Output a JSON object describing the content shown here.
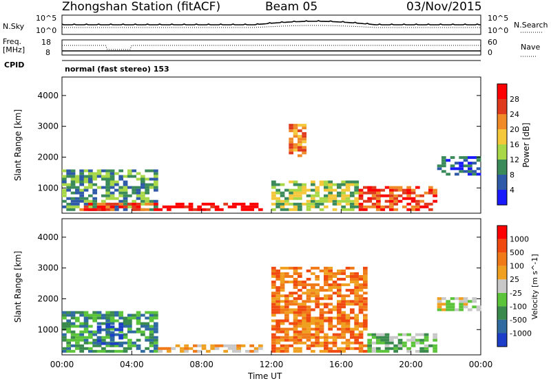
{
  "header": {
    "station": "Zhongshan Station (fitACF)",
    "beam": "Beam 05",
    "date": "03/Nov/2015"
  },
  "noise_panel": {
    "left_label": "N.Sky",
    "right_label": "N.Search",
    "left_ticks": [
      "10^5",
      "10^0"
    ],
    "right_ticks": [
      "10^5",
      "10^0"
    ]
  },
  "freq_panel": {
    "left_label": "Freq.",
    "left_unit": "[MHz]",
    "right_label": "Nave",
    "left_ticks": [
      "18",
      "8"
    ],
    "right_ticks": [
      "60",
      "0"
    ]
  },
  "cpid": {
    "label": "CPID",
    "value": "normal (fast stereo) 153"
  },
  "x_axis": {
    "title": "Time UT",
    "ticks": [
      "00:00",
      "04:00",
      "08:00",
      "12:00",
      "16:00",
      "20:00",
      "00:00"
    ]
  },
  "chart_data": [
    {
      "type": "heatmap",
      "title": "Power",
      "ylabel": "Slant Range [km]",
      "yticks": [
        1000,
        2000,
        3000,
        4000
      ],
      "ylim": [
        180,
        4600
      ],
      "xlabel": "Time UT",
      "colorbar": {
        "label": "Power [dB]",
        "ticks": [
          "4",
          "8",
          "12",
          "16",
          "20",
          "24",
          "28"
        ],
        "colors": [
          "#1a1aff",
          "#2e5aa8",
          "#3b8a5a",
          "#a8d848",
          "#f5c83c",
          "#f08a28",
          "#e03a1e",
          "#ff0000"
        ]
      },
      "regions": [
        {
          "t0": 0.0,
          "t1": 5.5,
          "r0": 250,
          "r1": 1600,
          "c": 2
        },
        {
          "t0": 1.0,
          "t1": 5.5,
          "r0": 250,
          "r1": 450,
          "c": 6
        },
        {
          "t0": 5.5,
          "t1": 11.5,
          "r0": 250,
          "r1": 500,
          "c": 7
        },
        {
          "t0": 12.0,
          "t1": 17.0,
          "r0": 250,
          "r1": 1200,
          "c": 3
        },
        {
          "t0": 13.0,
          "t1": 14.0,
          "r0": 2000,
          "r1": 3000,
          "c": 5
        },
        {
          "t0": 17.0,
          "t1": 21.5,
          "r0": 250,
          "r1": 1000,
          "c": 6
        },
        {
          "t0": 21.5,
          "t1": 24.0,
          "r0": 1400,
          "r1": 2000,
          "c": 1
        }
      ]
    },
    {
      "type": "heatmap",
      "title": "Velocity",
      "ylabel": "Slant Range [km]",
      "yticks": [
        1000,
        2000,
        3000,
        4000
      ],
      "ylim": [
        180,
        4600
      ],
      "xlabel": "Time UT",
      "colorbar": {
        "label": "Velocity [m s^-1]",
        "ticks": [
          "1000",
          "500",
          "100",
          "25",
          "-25",
          "-100",
          "-500",
          "-1000"
        ],
        "colors": [
          "#1c3ec8",
          "#2f6aa0",
          "#3a8a4e",
          "#5cc43a",
          "#c8c8c8",
          "#f0a020",
          "#f07a18",
          "#f04a10",
          "#ff0000"
        ]
      },
      "regions": [
        {
          "t0": 0.0,
          "t1": 5.5,
          "r0": 250,
          "r1": 1600,
          "c": 2
        },
        {
          "t0": 2.0,
          "t1": 3.5,
          "r0": 500,
          "r1": 1200,
          "c": 0
        },
        {
          "t0": 5.5,
          "t1": 11.5,
          "r0": 250,
          "r1": 500,
          "c": 5
        },
        {
          "t0": 12.0,
          "t1": 17.5,
          "r0": 250,
          "r1": 3000,
          "c": 6
        },
        {
          "t0": 17.5,
          "t1": 21.5,
          "r0": 250,
          "r1": 800,
          "c": 3
        },
        {
          "t0": 21.5,
          "t1": 24.0,
          "r0": 1600,
          "r1": 2000,
          "c": 4
        }
      ]
    }
  ]
}
